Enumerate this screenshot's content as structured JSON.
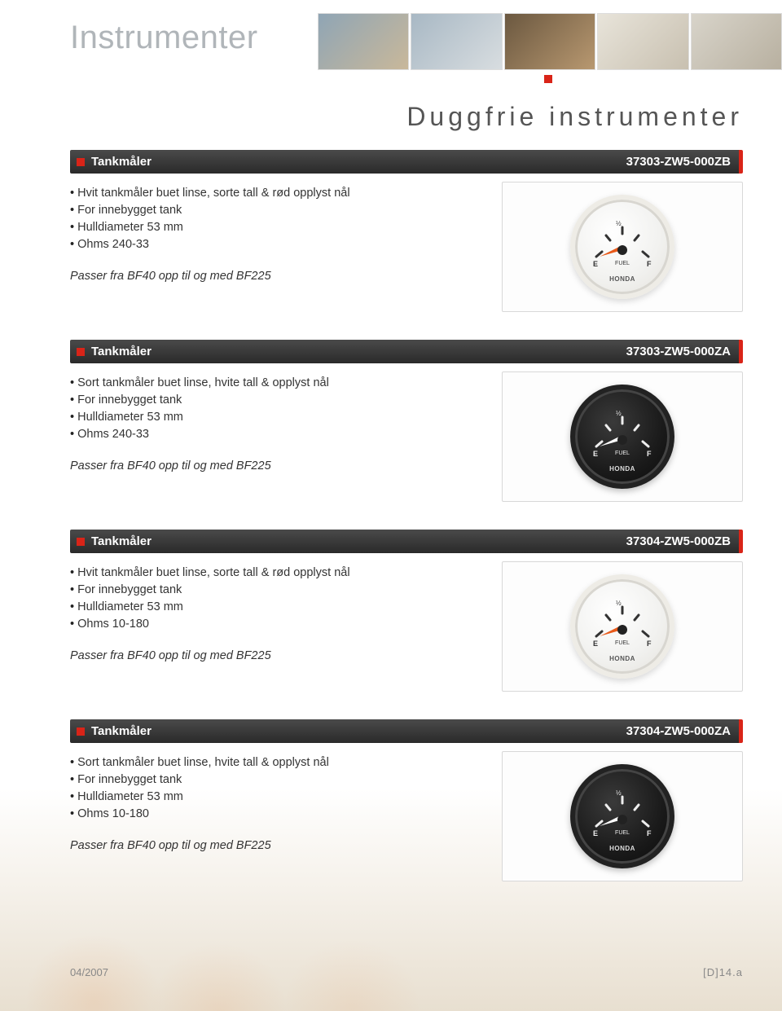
{
  "page": {
    "title": "Instrumenter",
    "subtitle": "Duggfrie instrumenter",
    "footer_date": "04/2007",
    "footer_page": "[D]14.a"
  },
  "colors": {
    "accent_red": "#d92418",
    "bar_gradient_top": "#4a4a4a",
    "bar_gradient_bottom": "#2a2a2a",
    "title_gray": "#b0b5b9",
    "text": "#333333",
    "image_border": "#d8d8d8"
  },
  "products": [
    {
      "name": "Tankmåler",
      "partno": "37303-ZW5-000ZB",
      "bullets": [
        "Hvit tankmåler buet linse, sorte tall & rød opplyst nål",
        "For innebygget tank",
        "Hulldiameter 53 mm",
        "Ohms 240-33"
      ],
      "fit": "Passer fra BF40 opp til og med BF225",
      "gauge_style": "white",
      "needle_color": "#e85a1a",
      "tick_color": "#333333",
      "brand": "HONDA"
    },
    {
      "name": "Tankmåler",
      "partno": "37303-ZW5-000ZA",
      "bullets": [
        "Sort tankmåler buet linse, hvite tall & opplyst nål",
        "For innebygget tank",
        "Hulldiameter 53 mm",
        "Ohms 240-33"
      ],
      "fit": "Passer fra BF40 opp til og med BF225",
      "gauge_style": "black",
      "needle_color": "#ffffff",
      "tick_color": "#eeeeee",
      "brand": "HONDA"
    },
    {
      "name": "Tankmåler",
      "partno": "37304-ZW5-000ZB",
      "bullets": [
        "Hvit tankmåler buet linse, sorte tall & rød opplyst nål",
        "For innebygget tank",
        "Hulldiameter 53 mm",
        "Ohms 10-180"
      ],
      "fit": "Passer fra BF40 opp til og med BF225",
      "gauge_style": "white",
      "needle_color": "#e85a1a",
      "tick_color": "#333333",
      "brand": "HONDA"
    },
    {
      "name": "Tankmåler",
      "partno": "37304-ZW5-000ZA",
      "bullets": [
        "Sort tankmåler buet linse, hvite tall & opplyst nål",
        "For innebygget tank",
        "Hulldiameter 53 mm",
        "Ohms 10-180"
      ],
      "fit": "Passer fra BF40 opp til og med BF225",
      "gauge_style": "black",
      "needle_color": "#ffffff",
      "tick_color": "#eeeeee",
      "brand": "HONDA"
    }
  ]
}
